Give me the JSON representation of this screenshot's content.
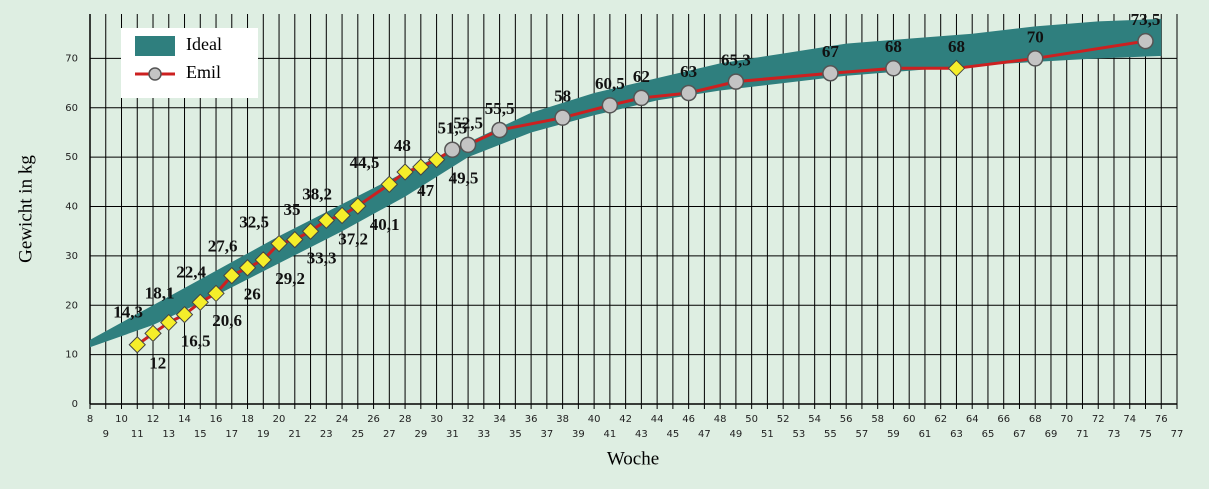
{
  "chart_data": {
    "type": "line",
    "xlabel": "Woche",
    "ylabel": "Gewicht in kg",
    "xlim": [
      8,
      77
    ],
    "ylim": [
      0,
      79
    ],
    "xticks": [
      8,
      9,
      10,
      11,
      12,
      13,
      14,
      15,
      16,
      17,
      18,
      19,
      20,
      21,
      22,
      23,
      24,
      25,
      26,
      27,
      28,
      29,
      30,
      31,
      32,
      33,
      34,
      35,
      36,
      37,
      38,
      39,
      40,
      41,
      42,
      43,
      44,
      45,
      46,
      47,
      48,
      49,
      50,
      51,
      52,
      53,
      54,
      55,
      56,
      57,
      58,
      59,
      60,
      61,
      62,
      63,
      64,
      65,
      66,
      67,
      68,
      69,
      70,
      71,
      72,
      73,
      74,
      75,
      76,
      77
    ],
    "yticks": [
      0,
      10,
      20,
      30,
      40,
      50,
      60,
      70
    ],
    "grid": true,
    "legend": "upper left",
    "series": [
      {
        "name": "Ideal",
        "kind": "band",
        "color": "#2f7f7e",
        "x": [
          8,
          12,
          16,
          20,
          24,
          28,
          32,
          36,
          40,
          44,
          48,
          52,
          56,
          60,
          64,
          68,
          72,
          76
        ],
        "lower": [
          11.5,
          16,
          22,
          28.5,
          35,
          42,
          50,
          55,
          58.5,
          61.5,
          63.5,
          65,
          66.5,
          67.5,
          68.5,
          69.3,
          70,
          70.5
        ],
        "upper": [
          13,
          20,
          27,
          34,
          40.5,
          47,
          53,
          59,
          63,
          66,
          69,
          71,
          73,
          74,
          75,
          76.5,
          77.5,
          78
        ]
      },
      {
        "name": "Emil",
        "kind": "line",
        "color": "#cc2020",
        "x": [
          11,
          12,
          13,
          14,
          15,
          16,
          17,
          18,
          19,
          20,
          21,
          22,
          23,
          24,
          25,
          27,
          28,
          29,
          30,
          31,
          32,
          34,
          38,
          41,
          43,
          46,
          49,
          55,
          59,
          63,
          68,
          75
        ],
        "values": [
          12,
          14.3,
          16.5,
          18.1,
          20.6,
          22.4,
          26,
          27.6,
          29.2,
          32.5,
          33.3,
          35,
          37.2,
          38.2,
          40.1,
          44.5,
          47,
          48,
          49.5,
          51.5,
          52.5,
          55.5,
          58,
          60.5,
          62,
          63,
          65.3,
          67,
          68,
          68,
          70,
          73.5
        ],
        "value_labels": [
          "12",
          "14,3",
          "16,5",
          "18,1",
          "20,6",
          "22,4",
          "26",
          "27,6",
          "29,2",
          "32,5",
          "33,3",
          "35",
          "37,2",
          "38,2",
          "40,1",
          "44,5",
          "47",
          "48",
          "49,5",
          "51,5",
          "52,5",
          "55,5",
          "58",
          "60,5",
          "62",
          "63",
          "65,3",
          "67",
          "68",
          "68",
          "70",
          "73,5"
        ],
        "markers": [
          "diamond",
          "diamond",
          "diamond",
          "diamond",
          "diamond",
          "diamond",
          "diamond",
          "diamond",
          "diamond",
          "diamond",
          "diamond",
          "diamond",
          "diamond",
          "diamond",
          "diamond",
          "diamond",
          "diamond",
          "diamond",
          "diamond",
          "circle",
          "circle",
          "circle",
          "circle",
          "circle",
          "circle",
          "circle",
          "circle",
          "circle",
          "circle",
          "diamond",
          "circle",
          "circle"
        ]
      }
    ]
  }
}
